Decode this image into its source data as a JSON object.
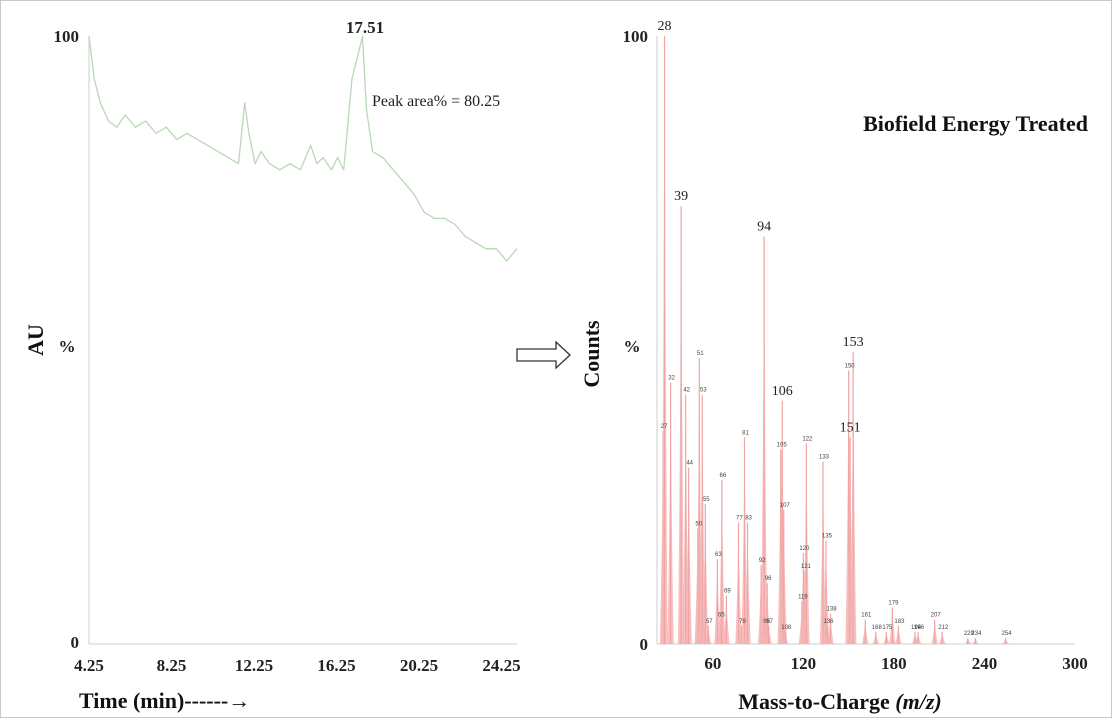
{
  "arrow_icon": "right-hollow-arrow-icon",
  "chart_data": [
    {
      "type": "line",
      "xlabel": "Time (min)------→",
      "ylabel": "AU",
      "y_unit_label": "%",
      "x_tick_labels": [
        "4.25",
        "8.25",
        "12.25",
        "16.25",
        "20.25",
        "24.25"
      ],
      "xlim": [
        4.25,
        25.0
      ],
      "y_tick_labels": [
        "100",
        "0"
      ],
      "ylim": [
        0,
        100
      ],
      "peak_label": "17.51",
      "annotation": "Peak area% = 80.25",
      "line_color": "#b9d8b5",
      "series": [
        {
          "x": [
            4.25,
            4.5,
            4.8,
            5.2,
            5.6,
            6.0,
            6.5,
            7.0,
            7.5,
            8.0,
            8.5,
            9.0,
            9.5,
            10.0,
            10.5,
            11.0,
            11.5,
            11.8,
            12.0,
            12.3,
            12.6,
            13.0,
            13.5,
            14.0,
            14.5,
            15.0,
            15.3,
            15.6,
            16.0,
            16.3,
            16.6,
            17.0,
            17.3,
            17.51,
            17.7,
            18.0,
            18.5,
            19.0,
            19.5,
            20.0,
            20.5,
            21.0,
            21.5,
            22.0,
            22.5,
            23.0,
            23.5,
            24.0,
            24.5,
            25.0
          ],
          "y": [
            100,
            93,
            89,
            86,
            85,
            87,
            85,
            86,
            84,
            85,
            83,
            84,
            83,
            82,
            81,
            80,
            79,
            89,
            84,
            79,
            81,
            79,
            78,
            79,
            78,
            82,
            79,
            80,
            78,
            80,
            78,
            93,
            97,
            100,
            88,
            81,
            80,
            78,
            76,
            74,
            71,
            70,
            70,
            69,
            67,
            66,
            65,
            65,
            63,
            65
          ]
        }
      ]
    },
    {
      "type": "bar",
      "title": "Biofield Energy Treated",
      "xlabel": "Mass-to-Charge (m/z)",
      "ylabel": "Counts",
      "y_unit_label": "%",
      "x_tick_labels": [
        "60",
        "120",
        "180",
        "240",
        "300"
      ],
      "xlim": [
        23,
        300
      ],
      "y_tick_labels": [
        "100",
        "0"
      ],
      "ylim": [
        0,
        100
      ],
      "bar_color": "#f4b6b6",
      "x": [
        27,
        28,
        32,
        39,
        42,
        44,
        50,
        51,
        53,
        55,
        57,
        63,
        65,
        66,
        69,
        77,
        79,
        81,
        83,
        92,
        94,
        95,
        96,
        97,
        105,
        106,
        107,
        108,
        119,
        120,
        121,
        122,
        133,
        135,
        136,
        138,
        150,
        151,
        153,
        161,
        168,
        175,
        179,
        183,
        194,
        196,
        207,
        212,
        229,
        234,
        254
      ],
      "values": [
        35,
        100,
        43,
        72,
        41,
        29,
        19,
        47,
        41,
        23,
        3,
        14,
        4,
        27,
        8,
        20,
        3,
        34,
        20,
        13,
        67,
        3,
        10,
        3,
        32,
        40,
        22,
        2,
        7,
        15,
        12,
        33,
        30,
        17,
        3,
        5,
        45,
        34,
        48,
        4,
        2,
        2,
        6,
        3,
        2,
        2,
        4,
        2,
        1,
        1,
        1
      ],
      "labels": [
        "27",
        "28",
        "32",
        "39",
        "42",
        "44",
        "50",
        "51",
        "53",
        "55",
        "57",
        "63",
        "65",
        "66",
        "69",
        "77",
        "79",
        "81",
        "83",
        "92",
        "94",
        "95",
        "96",
        "97",
        "105",
        "106",
        "107",
        "108",
        "119",
        "120",
        "121",
        "122",
        "133",
        "135",
        "136",
        "138",
        "150",
        "151",
        "153",
        "161",
        "168",
        "175",
        "179",
        "183",
        "194",
        "196",
        "207",
        "212",
        "229",
        "234",
        "254"
      ],
      "large_labels": [
        "28",
        "39",
        "94",
        "106",
        "151",
        "153"
      ]
    }
  ]
}
